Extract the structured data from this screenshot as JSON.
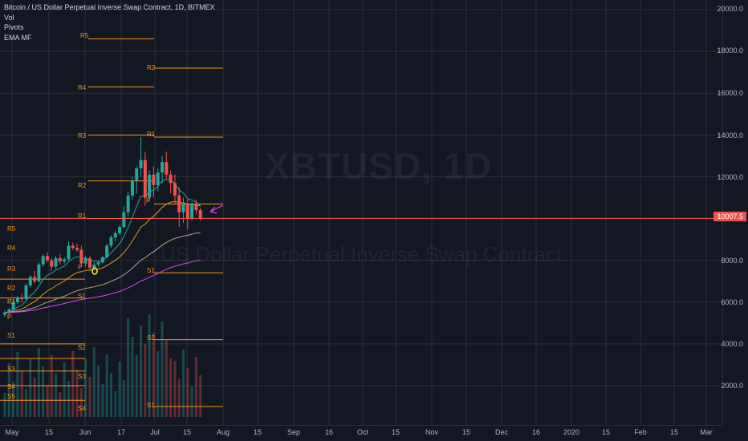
{
  "legend": {
    "symbol_title": "Bitcoin / US Dollar Perpetual Inverse Swap Contract, 1D, BITMEX",
    "indicators": [
      "Vol",
      "Pivots",
      "EMA MF"
    ]
  },
  "watermark": {
    "ticker": "XBTUSD, 1D",
    "description": "US Dollar Perpetual Inverse Swap Contract"
  },
  "price_axis": {
    "labels": [
      "20000.0",
      "18000.0",
      "16000.0",
      "14000.0",
      "12000.0",
      "10007.5",
      "8000.0",
      "6000.0",
      "4000.0",
      "2000.0"
    ],
    "last_price": "10007.5",
    "last_price_color": "#ef5350"
  },
  "time_axis": {
    "labels": [
      "May",
      "15",
      "Jun",
      "17",
      "Jul",
      "15",
      "Aug",
      "15",
      "Sep",
      "16",
      "Oct",
      "15",
      "Nov",
      "15",
      "Dec",
      "16",
      "2020",
      "15",
      "Feb",
      "15",
      "Mar"
    ]
  },
  "pivot_labels": [
    "R5",
    "R2",
    "R4",
    "R1",
    "R3",
    "R2",
    "P",
    "R1",
    "R5",
    "R4",
    "R3",
    "P",
    "S1",
    "R2",
    "R1",
    "S1",
    "P",
    "S2",
    "S1",
    "S2",
    "S3",
    "S3",
    "S4",
    "S5",
    "S4",
    "S1"
  ],
  "colors": {
    "background": "#131722",
    "up_candle": "#26a69a",
    "down_candle": "#ef5350",
    "pivot_line": "#f7931a",
    "grid": "#2a2e39"
  },
  "chart_data": {
    "type": "candlestick",
    "symbol": "XBTUSD",
    "interval": "1D",
    "ylim": [
      0,
      21000
    ],
    "ohlc": [
      [
        5400,
        5600,
        5300,
        5500
      ],
      [
        5500,
        5700,
        5400,
        5650
      ],
      [
        5650,
        6100,
        5600,
        6000
      ],
      [
        6000,
        6300,
        5900,
        6200
      ],
      [
        6200,
        6400,
        6000,
        6150
      ],
      [
        6150,
        6900,
        6100,
        6800
      ],
      [
        6800,
        7300,
        6700,
        7200
      ],
      [
        7200,
        7500,
        6900,
        7000
      ],
      [
        7000,
        7900,
        6950,
        7800
      ],
      [
        7800,
        8300,
        7700,
        8200
      ],
      [
        8200,
        8400,
        7900,
        8000
      ],
      [
        8000,
        8100,
        7500,
        7700
      ],
      [
        7700,
        8200,
        7600,
        8100
      ],
      [
        8100,
        8300,
        7800,
        7950
      ],
      [
        7950,
        8150,
        7850,
        8050
      ],
      [
        8050,
        8900,
        8000,
        8700
      ],
      [
        8700,
        8850,
        8500,
        8600
      ],
      [
        8600,
        8800,
        8400,
        8500
      ],
      [
        8500,
        8700,
        7700,
        7850
      ],
      [
        7850,
        8200,
        7700,
        8100
      ],
      [
        8100,
        8200,
        7500,
        7650
      ],
      [
        7650,
        7900,
        7600,
        7800
      ],
      [
        7800,
        8000,
        7700,
        7900
      ],
      [
        7900,
        8200,
        7850,
        8150
      ],
      [
        8150,
        8800,
        8100,
        8700
      ],
      [
        8700,
        9200,
        8600,
        9100
      ],
      [
        9100,
        9400,
        8900,
        9300
      ],
      [
        9300,
        9700,
        9200,
        9600
      ],
      [
        9600,
        10600,
        9500,
        10300
      ],
      [
        10300,
        11300,
        10100,
        11100
      ],
      [
        11100,
        12000,
        10900,
        11800
      ],
      [
        11800,
        12500,
        11200,
        12400
      ],
      [
        12400,
        13900,
        12000,
        12800
      ],
      [
        12800,
        13200,
        10600,
        11000
      ],
      [
        11000,
        12300,
        10800,
        12100
      ],
      [
        12100,
        12500,
        11000,
        11600
      ],
      [
        11600,
        12400,
        11300,
        12200
      ],
      [
        12200,
        13000,
        11700,
        12700
      ],
      [
        12700,
        13200,
        11900,
        12100
      ],
      [
        12100,
        12300,
        11200,
        11700
      ],
      [
        11700,
        12100,
        10700,
        11100
      ],
      [
        11100,
        11500,
        9600,
        10300
      ],
      [
        10300,
        11000,
        9800,
        10700
      ],
      [
        10700,
        10900,
        9500,
        10000
      ],
      [
        10000,
        10800,
        9900,
        10700
      ],
      [
        10700,
        10900,
        10200,
        10400
      ],
      [
        10400,
        10500,
        9900,
        10007.5
      ]
    ],
    "pivot_levels_current": {
      "R2": 17200,
      "R1": 13900,
      "P": 10700,
      "S1": 7400,
      "S2": 4200,
      "S1b": 1000
    },
    "pivot_levels_previous": {
      "R5": 18600,
      "R4": 16300,
      "R3": 14000,
      "R2": 11800,
      "R1": 10000
    }
  }
}
